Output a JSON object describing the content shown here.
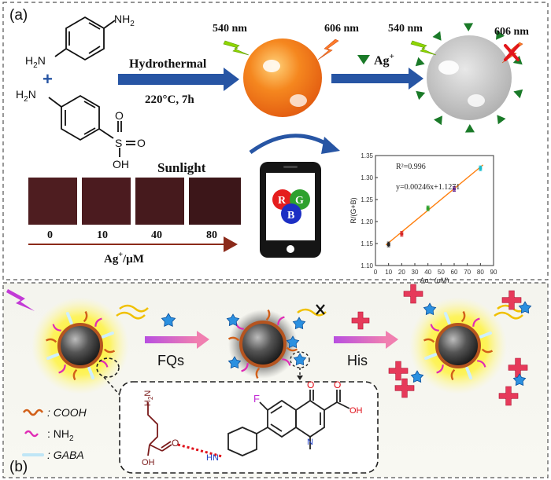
{
  "panel_a": {
    "label": "(a)",
    "reactant1": {
      "nh2_top": "NH",
      "nh2_top_sub": "2",
      "nh2_left": "H",
      "nh2_left_n": "N"
    },
    "plus": "+",
    "reactant2": {
      "nh2": "H",
      "nh2_n": "N",
      "sulfo_s": "S",
      "sulfo_o1": "O",
      "sulfo_o2": "O",
      "sulfo_oh": "OH"
    },
    "reaction_method": "Hydrothermal",
    "reaction_conditions": "220°C, 7h",
    "wavelength_excitation": "540 nm",
    "wavelength_emission": "606 nm",
    "wavelength_excitation_2": "540 nm",
    "wavelength_emission_2": "606 nm",
    "analyte": "Ag",
    "analyte_sup": "+",
    "sunlight_label": "Sunlight",
    "concentrations": [
      "0",
      "10",
      "40",
      "80"
    ],
    "conc_axis_label": "Ag",
    "conc_axis_label_sup": "+",
    "conc_axis_unit": "/μM",
    "rgb_letters": {
      "r": "R",
      "g": "G",
      "b": "B"
    },
    "colors": {
      "swatch": "#4e1d20",
      "orange": "#f07a1e",
      "grey_np": "#c8c8c8",
      "green_marker": "#1a7a28",
      "arrow_blue": "#2755a4"
    }
  },
  "chart_data": {
    "type": "scatter",
    "ylabel": "R/(G+B)",
    "xlabel": "Ag⁺ (μM)",
    "xlim": [
      0,
      90
    ],
    "ylim": [
      1.1,
      1.35
    ],
    "xticks": [
      "0",
      "10",
      "20",
      "30",
      "40",
      "50",
      "60",
      "70",
      "80",
      "90"
    ],
    "yticks": [
      "1.10",
      "1.15",
      "1.20",
      "1.25",
      "1.30",
      "1.35"
    ],
    "x": [
      10,
      20,
      40,
      60,
      80
    ],
    "y": [
      1.148,
      1.172,
      1.23,
      1.274,
      1.321
    ],
    "point_colors": [
      "#222222",
      "#d62728",
      "#2ca02c",
      "#6a2c91",
      "#17becf"
    ],
    "fit_line": {
      "slope": 0.00246,
      "intercept": 1.1271,
      "x_range": [
        8,
        82
      ],
      "color": "#ff7f0e"
    },
    "annotations": [
      "R²=0.996",
      "y=0.00246x+1.1271"
    ]
  },
  "panel_b": {
    "label": "(b)",
    "step1_label": "FQs",
    "step2_label": "His",
    "legend": [
      {
        "label": ": COOH"
      },
      {
        "label": ": NH",
        "sub": "2"
      },
      {
        "label": ": GABA"
      }
    ],
    "mol": {
      "h2n": "H",
      "h2n_n": "N",
      "h2n_sub": "2",
      "o_lower": "O",
      "oh": "OH",
      "hn": "HN",
      "f": "F",
      "o_top": "O",
      "o_acid": "O",
      "oh_acid": "OH",
      "n_ring": "N"
    },
    "colors": {
      "glow": "#fff21a",
      "arrow_magenta": "#c850e0",
      "fq_blue": "#1f7fd4",
      "his_red": "#e0284a"
    }
  }
}
